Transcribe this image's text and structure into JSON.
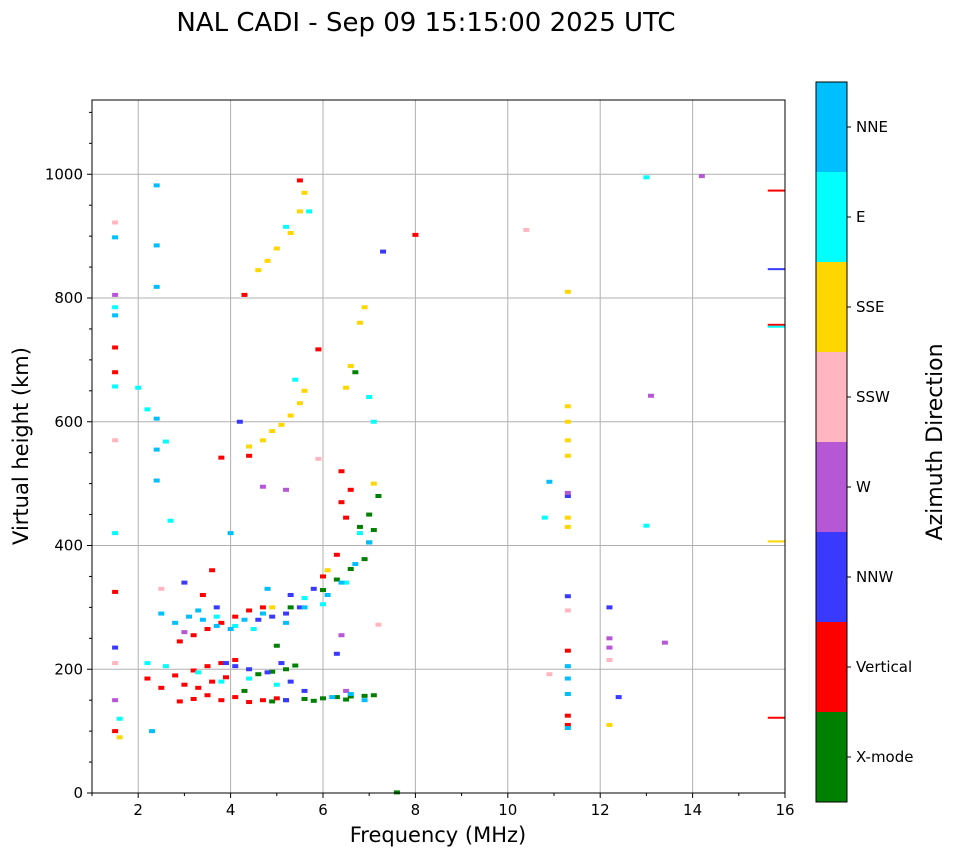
{
  "chart_data": {
    "type": "scatter",
    "title": "NAL CADI - Sep 09 15:15:00 2025 UTC",
    "xlabel": "Frequency (MHz)",
    "ylabel": "Virtual height (km)",
    "xlim": [
      1,
      16
    ],
    "ylim": [
      0,
      1120
    ],
    "xticks": [
      2,
      4,
      6,
      8,
      10,
      12,
      14,
      16
    ],
    "yticks": [
      0,
      200,
      400,
      600,
      800,
      1000
    ],
    "grid": true,
    "colorbar": {
      "label": "Azimuth Direction",
      "categories": [
        {
          "name": "X-mode",
          "color": "#008000"
        },
        {
          "name": "Vertical",
          "color": "#ff0000"
        },
        {
          "name": "NNW",
          "color": "#3a3aff"
        },
        {
          "name": "W",
          "color": "#b657d6"
        },
        {
          "name": "SSW",
          "color": "#ffb6c1"
        },
        {
          "name": "SSE",
          "color": "#ffd700"
        },
        {
          "name": "E",
          "color": "#00ffff"
        },
        {
          "name": "NNE",
          "color": "#00bfff"
        }
      ]
    },
    "series": [
      {
        "name": "X-mode",
        "points": [
          [
            4.9,
            148
          ],
          [
            5.2,
            150
          ],
          [
            5.6,
            152
          ],
          [
            6.0,
            153
          ],
          [
            6.3,
            155
          ],
          [
            6.6,
            156
          ],
          [
            6.9,
            157
          ],
          [
            7.1,
            158
          ],
          [
            5.8,
            149
          ],
          [
            6.5,
            151
          ],
          [
            4.6,
            192
          ],
          [
            4.9,
            196
          ],
          [
            5.2,
            200
          ],
          [
            5.4,
            206
          ],
          [
            5.0,
            238
          ],
          [
            6.0,
            328
          ],
          [
            6.3,
            345
          ],
          [
            6.6,
            362
          ],
          [
            6.9,
            378
          ],
          [
            7.0,
            405
          ],
          [
            7.1,
            425
          ],
          [
            7.0,
            450
          ],
          [
            7.2,
            480
          ],
          [
            6.8,
            430
          ],
          [
            6.7,
            680
          ],
          [
            5.3,
            300
          ],
          [
            4.3,
            165
          ],
          [
            7.6,
            1.0
          ]
        ]
      },
      {
        "name": "Vertical",
        "points": [
          [
            2.9,
            148
          ],
          [
            3.2,
            152
          ],
          [
            3.5,
            158
          ],
          [
            3.8,
            150
          ],
          [
            4.1,
            155
          ],
          [
            4.4,
            147
          ],
          [
            4.7,
            150
          ],
          [
            5.0,
            153
          ],
          [
            3.0,
            175
          ],
          [
            3.3,
            170
          ],
          [
            3.6,
            180
          ],
          [
            3.9,
            187
          ],
          [
            2.8,
            190
          ],
          [
            3.2,
            198
          ],
          [
            3.5,
            205
          ],
          [
            3.8,
            210
          ],
          [
            4.1,
            215
          ],
          [
            2.9,
            245
          ],
          [
            3.2,
            255
          ],
          [
            3.5,
            265
          ],
          [
            3.8,
            275
          ],
          [
            4.1,
            285
          ],
          [
            4.4,
            295
          ],
          [
            4.7,
            300
          ],
          [
            3.4,
            320
          ],
          [
            3.6,
            360
          ],
          [
            3.8,
            542
          ],
          [
            4.4,
            545
          ],
          [
            5.9,
            717
          ],
          [
            6.4,
            520
          ],
          [
            6.4,
            470
          ],
          [
            6.5,
            445
          ],
          [
            6.6,
            490
          ],
          [
            6.3,
            385
          ],
          [
            6.0,
            350
          ],
          [
            1.5,
            720
          ],
          [
            1.5,
            680
          ],
          [
            1.5,
            325
          ],
          [
            11.3,
            230
          ],
          [
            11.3,
            125
          ],
          [
            11.3,
            110
          ],
          [
            8.0,
            902
          ],
          [
            15.8,
            972
          ],
          [
            15.8,
            755
          ],
          [
            15.8,
            120
          ],
          [
            5.5,
            990
          ],
          [
            4.3,
            805
          ],
          [
            1.5,
            100
          ],
          [
            2.2,
            185
          ],
          [
            2.5,
            170
          ]
        ]
      },
      {
        "name": "NNW",
        "points": [
          [
            3.9,
            210
          ],
          [
            4.1,
            205
          ],
          [
            4.4,
            200
          ],
          [
            4.8,
            195
          ],
          [
            5.1,
            210
          ],
          [
            5.3,
            180
          ],
          [
            5.6,
            165
          ],
          [
            5.2,
            150
          ],
          [
            6.3,
            225
          ],
          [
            4.6,
            280
          ],
          [
            4.9,
            285
          ],
          [
            5.2,
            290
          ],
          [
            5.5,
            300
          ],
          [
            5.3,
            320
          ],
          [
            5.8,
            330
          ],
          [
            3.0,
            340
          ],
          [
            7.3,
            875
          ],
          [
            11.3,
            318
          ],
          [
            11.3,
            480
          ],
          [
            12.2,
            300
          ],
          [
            12.4,
            155
          ],
          [
            15.8,
            845
          ],
          [
            1.5,
            235
          ],
          [
            3.7,
            300
          ],
          [
            4.2,
            600
          ]
        ]
      },
      {
        "name": "W",
        "points": [
          [
            6.4,
            255
          ],
          [
            6.5,
            165
          ],
          [
            5.2,
            490
          ],
          [
            4.7,
            495
          ],
          [
            3.0,
            260
          ],
          [
            1.5,
            805
          ],
          [
            12.2,
            250
          ],
          [
            12.2,
            235
          ],
          [
            13.4,
            243
          ],
          [
            13.1,
            642
          ],
          [
            14.2,
            997
          ],
          [
            11.3,
            485
          ],
          [
            1.5,
            150
          ]
        ]
      },
      {
        "name": "SSW",
        "points": [
          [
            1.5,
            210
          ],
          [
            1.5,
            570
          ],
          [
            1.5,
            922
          ],
          [
            7.2,
            272
          ],
          [
            10.4,
            910
          ],
          [
            10.9,
            192
          ],
          [
            12.2,
            215
          ],
          [
            11.3,
            295
          ],
          [
            5.9,
            540
          ],
          [
            2.5,
            330
          ]
        ]
      },
      {
        "name": "SSE",
        "points": [
          [
            4.6,
            845
          ],
          [
            4.8,
            860
          ],
          [
            5.0,
            880
          ],
          [
            5.3,
            905
          ],
          [
            5.5,
            940
          ],
          [
            5.6,
            970
          ],
          [
            4.4,
            560
          ],
          [
            4.7,
            570
          ],
          [
            4.9,
            585
          ],
          [
            5.1,
            595
          ],
          [
            5.3,
            610
          ],
          [
            5.5,
            630
          ],
          [
            5.6,
            650
          ],
          [
            6.5,
            655
          ],
          [
            6.6,
            690
          ],
          [
            6.8,
            760
          ],
          [
            6.9,
            785
          ],
          [
            11.3,
            430
          ],
          [
            11.3,
            445
          ],
          [
            11.3,
            545
          ],
          [
            11.3,
            570
          ],
          [
            11.3,
            600
          ],
          [
            11.3,
            625
          ],
          [
            11.3,
            810
          ],
          [
            12.2,
            110
          ],
          [
            15.8,
            405
          ],
          [
            7.1,
            500
          ],
          [
            6.1,
            360
          ],
          [
            4.9,
            300
          ],
          [
            1.6,
            90
          ]
        ]
      },
      {
        "name": "E",
        "points": [
          [
            2.2,
            210
          ],
          [
            2.6,
            205
          ],
          [
            3.3,
            195
          ],
          [
            3.8,
            180
          ],
          [
            4.4,
            185
          ],
          [
            5.0,
            175
          ],
          [
            3.7,
            285
          ],
          [
            4.1,
            270
          ],
          [
            4.5,
            265
          ],
          [
            5.6,
            315
          ],
          [
            6.0,
            305
          ],
          [
            6.5,
            340
          ],
          [
            6.8,
            420
          ],
          [
            7.0,
            640
          ],
          [
            7.1,
            600
          ],
          [
            1.5,
            785
          ],
          [
            1.5,
            657
          ],
          [
            1.5,
            420
          ],
          [
            2.0,
            655
          ],
          [
            2.2,
            620
          ],
          [
            2.6,
            568
          ],
          [
            2.7,
            440
          ],
          [
            5.4,
            668
          ],
          [
            5.2,
            915
          ],
          [
            5.7,
            940
          ],
          [
            10.8,
            445
          ],
          [
            13.0,
            432
          ],
          [
            13.0,
            995
          ],
          [
            15.8,
            752
          ],
          [
            1.6,
            120
          ]
        ]
      },
      {
        "name": "NNE",
        "points": [
          [
            2.5,
            290
          ],
          [
            2.8,
            275
          ],
          [
            3.1,
            285
          ],
          [
            3.4,
            280
          ],
          [
            3.7,
            270
          ],
          [
            4.0,
            265
          ],
          [
            4.3,
            280
          ],
          [
            4.7,
            290
          ],
          [
            5.2,
            275
          ],
          [
            5.6,
            300
          ],
          [
            6.1,
            320
          ],
          [
            6.4,
            340
          ],
          [
            6.7,
            370
          ],
          [
            7.0,
            405
          ],
          [
            6.9,
            150
          ],
          [
            6.6,
            160
          ],
          [
            6.2,
            155
          ],
          [
            4.0,
            420
          ],
          [
            3.3,
            295
          ],
          [
            4.8,
            330
          ],
          [
            2.4,
            982
          ],
          [
            2.4,
            885
          ],
          [
            2.4,
            818
          ],
          [
            2.4,
            605
          ],
          [
            2.4,
            555
          ],
          [
            2.4,
            505
          ],
          [
            1.5,
            898
          ],
          [
            1.5,
            772
          ],
          [
            11.3,
            205
          ],
          [
            11.3,
            185
          ],
          [
            11.3,
            160
          ],
          [
            11.3,
            105
          ],
          [
            10.9,
            503
          ],
          [
            2.3,
            100
          ]
        ]
      }
    ]
  }
}
